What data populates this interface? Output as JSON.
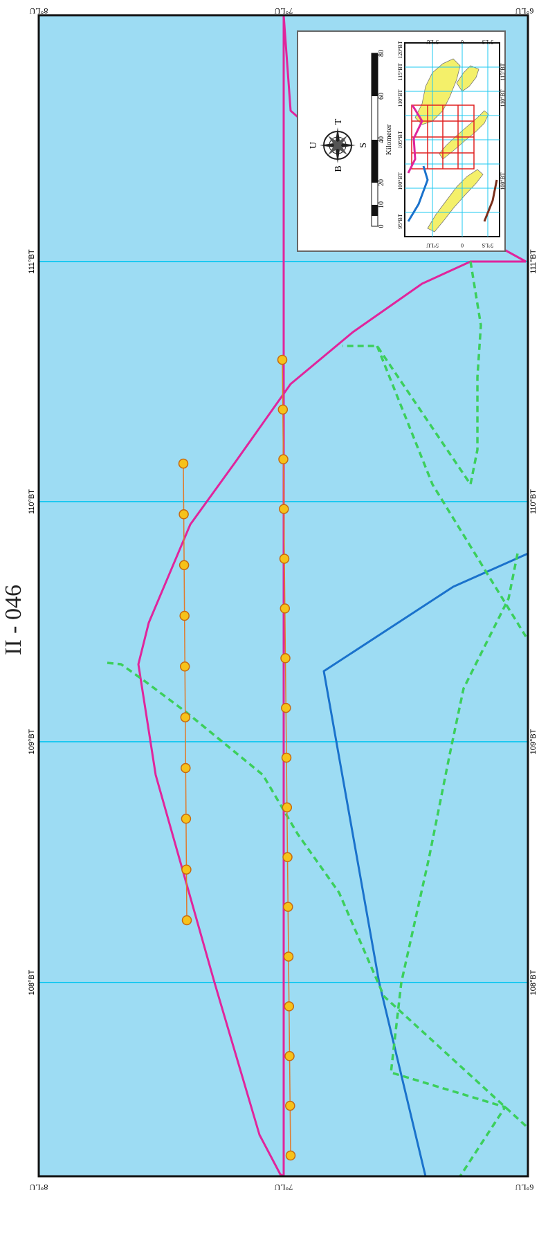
{
  "title": "II - 046",
  "map": {
    "colors": {
      "sea": "#9ddcf3",
      "grid": "#1ec8f0",
      "frame": "#111111",
      "boundary_magenta": "#e0259c",
      "boundary_blue": "#1a72cc",
      "boundary_green_dashed": "#3ccf5c",
      "track_line": "#e07a2a",
      "station_fill": "#f6c21a",
      "station_edge": "#c76a10"
    },
    "longitude_labels": [
      "108°BT",
      "109°BT",
      "110°BT",
      "111°BT"
    ],
    "latitude_labels": {
      "left_edge": [
        "8°LU",
        "7°LU",
        "6°LU"
      ],
      "right_edge": [
        "8°LU",
        "7°LU",
        "6°LU"
      ]
    },
    "lines": [
      {
        "name": "Magenta boundary",
        "color": "boundary_magenta",
        "style": "solid"
      },
      {
        "name": "Blue boundary",
        "color": "boundary_blue",
        "style": "solid"
      },
      {
        "name": "Green dashed boundary (east)",
        "color": "boundary_green_dashed",
        "style": "dashed"
      },
      {
        "name": "Green dashed boundary (west)",
        "color": "boundary_green_dashed",
        "style": "dashed"
      },
      {
        "name": "Green dashed boundary (south)",
        "color": "boundary_green_dashed",
        "style": "dashed"
      }
    ],
    "survey_tracks": [
      {
        "name": "Track A",
        "stations": 10
      },
      {
        "name": "Track B",
        "stations": 17
      }
    ]
  },
  "inset": {
    "compass": {
      "north": "U",
      "south": "S",
      "east": "T",
      "west": "B"
    },
    "scale_bar": {
      "unit": "Kilometer",
      "ticks": [
        "0",
        "10",
        "20",
        "40",
        "60",
        "80"
      ]
    },
    "locator_longitudes": [
      "95°BT",
      "100°BT",
      "105°BT",
      "110°BT",
      "115°BT",
      "120°BT"
    ],
    "locator_latitudes": [
      "5°LU",
      "0",
      "5°LS"
    ],
    "colors": {
      "land": "#f4f06a",
      "sheet_grid": "#e02020",
      "frame": "#666666"
    }
  }
}
